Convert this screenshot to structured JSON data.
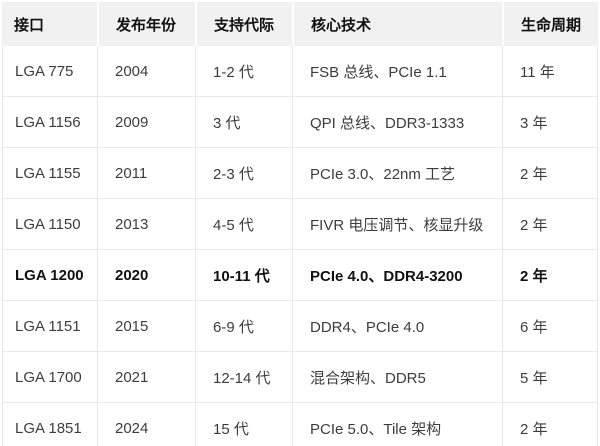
{
  "colors": {
    "background": "#ffffff",
    "header_bg": "#f1f1f1",
    "border": "#e9e9e9",
    "text": "#3d3d3d",
    "emphasis_text": "#111111"
  },
  "table": {
    "columns": [
      {
        "key": "interface",
        "label": "接口"
      },
      {
        "key": "year",
        "label": "发布年份"
      },
      {
        "key": "generations",
        "label": "支持代际"
      },
      {
        "key": "tech",
        "label": "核心技术"
      },
      {
        "key": "lifecycle",
        "label": "生命周期"
      }
    ],
    "rows": [
      {
        "interface": "LGA 775",
        "year": "2004",
        "generations": "1-2 代",
        "tech": "FSB 总线、PCIe 1.1",
        "lifecycle": "11 年",
        "emphasis": false
      },
      {
        "interface": "LGA 1156",
        "year": "2009",
        "generations": "3 代",
        "tech": "QPI 总线、DDR3-1333",
        "lifecycle": "3 年",
        "emphasis": false
      },
      {
        "interface": "LGA 1155",
        "year": "2011",
        "generations": "2-3 代",
        "tech": "PCIe 3.0、22nm 工艺",
        "lifecycle": "2 年",
        "emphasis": false
      },
      {
        "interface": "LGA 1150",
        "year": "2013",
        "generations": "4-5 代",
        "tech": "FIVR 电压调节、核显升级",
        "lifecycle": "2 年",
        "emphasis": false
      },
      {
        "interface": "LGA 1200",
        "year": "2020",
        "generations": "10-11 代",
        "tech": "PCIe 4.0、DDR4-3200",
        "lifecycle": "2 年",
        "emphasis": true
      },
      {
        "interface": "LGA 1151",
        "year": "2015",
        "generations": "6-9 代",
        "tech": "DDR4、PCIe 4.0",
        "lifecycle": "6 年",
        "emphasis": false
      },
      {
        "interface": "LGA 1700",
        "year": "2021",
        "generations": "12-14 代",
        "tech": "混合架构、DDR5",
        "lifecycle": "5 年",
        "emphasis": false
      },
      {
        "interface": "LGA 1851",
        "year": "2024",
        "generations": "15 代",
        "tech": "PCIe 5.0、Tile 架构",
        "lifecycle": "2 年",
        "emphasis": false
      }
    ]
  }
}
